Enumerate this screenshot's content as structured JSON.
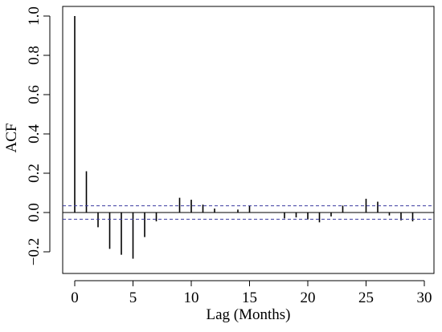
{
  "chart_data": {
    "type": "bar",
    "title": "",
    "xlabel": "Lag (Months)",
    "ylabel": "ACF",
    "xlim": [
      -1,
      31
    ],
    "ylim": [
      -0.28,
      1.03
    ],
    "x_ticks": [
      0,
      5,
      10,
      15,
      20,
      25,
      30
    ],
    "x_tick_labels": [
      "0",
      "5",
      "10",
      "15",
      "20",
      "25",
      "30"
    ],
    "y_ticks": [
      -0.2,
      0.0,
      0.2,
      0.4,
      0.6,
      0.8,
      1.0
    ],
    "y_tick_labels": [
      "−0.2",
      "0.0",
      "0.2",
      "0.4",
      "0.6",
      "0.8",
      "1.0"
    ],
    "grid": false,
    "lags": [
      0,
      1,
      2,
      3,
      4,
      5,
      6,
      7,
      8,
      9,
      10,
      11,
      12,
      13,
      14,
      15,
      16,
      17,
      18,
      19,
      20,
      21,
      22,
      23,
      24,
      25,
      26,
      27,
      28,
      29
    ],
    "acf": [
      1.0,
      0.21,
      -0.075,
      -0.185,
      -0.215,
      -0.235,
      -0.125,
      -0.045,
      0.0,
      0.075,
      0.065,
      0.04,
      0.02,
      0.0,
      0.015,
      0.035,
      0.0,
      0.0,
      -0.03,
      -0.025,
      -0.035,
      -0.05,
      -0.02,
      0.035,
      0.0,
      0.07,
      0.055,
      -0.015,
      -0.04,
      -0.045
    ],
    "confidence_bounds": [
      0.034,
      -0.034
    ],
    "colors": {
      "spikes": "#000000",
      "confidence": "#3a3aa0",
      "axes": "#000000"
    }
  }
}
